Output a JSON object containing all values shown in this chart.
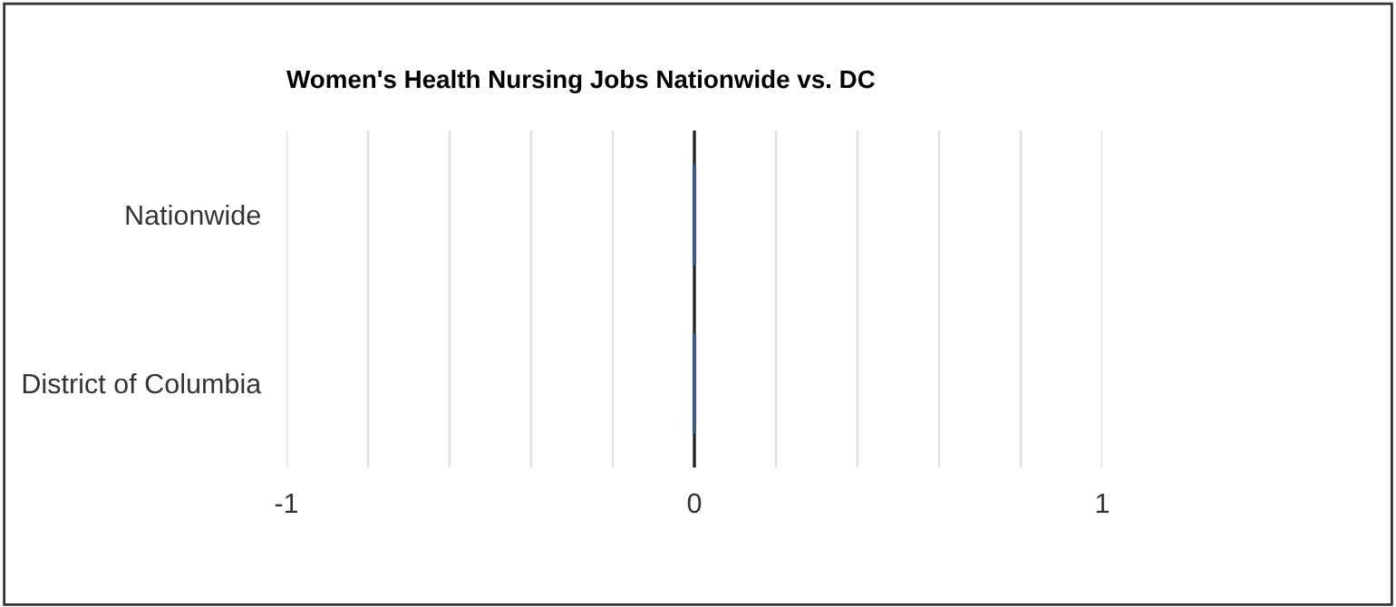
{
  "chart_data": {
    "type": "bar",
    "orientation": "horizontal",
    "title": "Women's Health Nursing Jobs Nationwide vs. DC",
    "categories": [
      "Nationwide",
      "District of Columbia"
    ],
    "values": [
      0,
      0
    ],
    "color": "#3d5a80",
    "xlim": [
      -1,
      1
    ],
    "xticks": [
      -1,
      {
        "value": -0.8,
        "label": null
      },
      {
        "value": -0.6,
        "label": null
      },
      {
        "value": -0.4,
        "label": null
      },
      {
        "value": -0.2,
        "label": null
      },
      0,
      {
        "value": 0.2,
        "label": null
      },
      {
        "value": 0.4,
        "label": null
      },
      {
        "value": 0.6,
        "label": null
      },
      {
        "value": 0.8,
        "label": null
      },
      1
    ],
    "grid": "x",
    "ref_lines": [
      {
        "axis": "x",
        "value": 0,
        "label": null,
        "color": "#222222"
      }
    ],
    "legend": false
  }
}
